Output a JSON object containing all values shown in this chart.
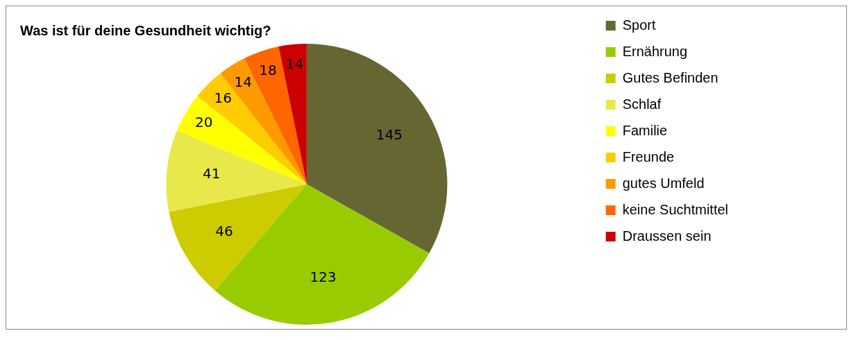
{
  "chart_data": {
    "type": "pie",
    "title": "Was ist für deine Gesundheit wichtig?",
    "categories": [
      "Sport",
      "Ernährung",
      "Gutes Befinden",
      "Schlaf",
      "Familie",
      "Freunde",
      "gutes Umfeld",
      "keine Suchtmittel",
      "Draussen sein"
    ],
    "values": [
      145,
      123,
      46,
      41,
      20,
      16,
      14,
      18,
      14
    ],
    "colors": [
      "#666633",
      "#99cc00",
      "#cccc00",
      "#e8e84a",
      "#ffff00",
      "#ffcc00",
      "#ff9900",
      "#ff6600",
      "#cc0000"
    ],
    "data_labels": true,
    "legend": "right"
  }
}
